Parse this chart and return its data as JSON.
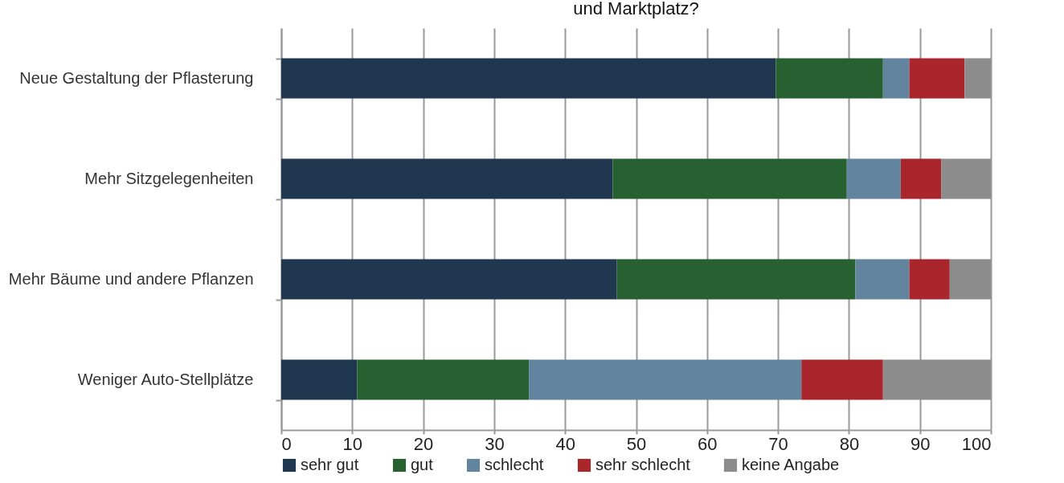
{
  "chart_data": {
    "type": "bar",
    "orientation": "horizontal",
    "stacked": true,
    "title": "und Marktplatz?",
    "categories": [
      "Neue Gestaltung der Pflasterung",
      "Mehr Sitzgelegenheiten",
      "Mehr Bäume und andere Pflanzen",
      "Weniger Auto-Stellplätze"
    ],
    "series": [
      {
        "name": "sehr gut",
        "color": "#1f3850",
        "values": [
          69.7,
          46.7,
          47.3,
          10.7
        ]
      },
      {
        "name": "gut",
        "color": "#276131",
        "values": [
          15.1,
          33.0,
          33.6,
          24.2
        ]
      },
      {
        "name": "schlecht",
        "color": "#62849f",
        "values": [
          3.7,
          7.6,
          7.6,
          38.4
        ]
      },
      {
        "name": "sehr schlecht",
        "color": "#a8262c",
        "values": [
          7.8,
          5.7,
          5.7,
          11.5
        ]
      },
      {
        "name": "keine Angabe",
        "color": "#8c8c8c",
        "values": [
          3.7,
          7.0,
          5.8,
          15.2
        ]
      }
    ],
    "xlim": [
      0,
      100
    ],
    "xticks": [
      0,
      10,
      20,
      30,
      40,
      50,
      60,
      70,
      80,
      90,
      100
    ],
    "grid": "x",
    "legend": "bottom"
  }
}
